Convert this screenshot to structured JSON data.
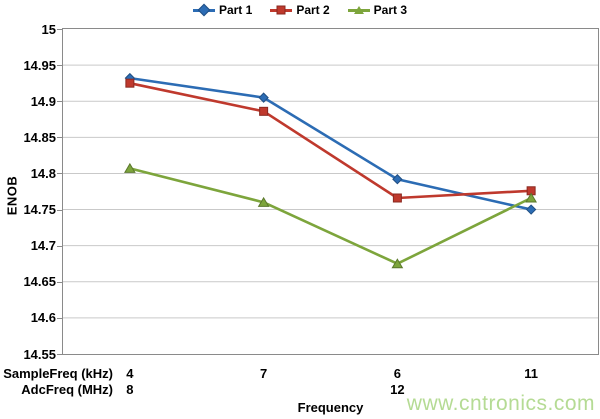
{
  "watermark": {
    "text": "www.cntronics.com",
    "color": "#b5db94"
  },
  "axis_colors": {
    "border": "#8a8a8a",
    "gridline": "#c9c9c9",
    "text": "#000000"
  },
  "chart_data": {
    "type": "line",
    "title": "",
    "ylabel": "ENOB",
    "xlabel": "Frequency",
    "ylim": [
      14.55,
      15
    ],
    "ytick_step": 0.05,
    "yticks": [
      "15",
      "14.95",
      "14.9",
      "14.85",
      "14.8",
      "14.75",
      "14.7",
      "14.65",
      "14.6",
      "14.55"
    ],
    "grid": true,
    "legend_position": "top",
    "categories": [
      "4",
      "7",
      "6",
      "11"
    ],
    "x_axis_rows": [
      {
        "label": "SampleFreq (kHz)",
        "values": [
          "4",
          "7",
          "6",
          "11"
        ]
      },
      {
        "label": "AdcFreq (MHz)",
        "values": [
          "8",
          "",
          "12",
          ""
        ]
      }
    ],
    "series": [
      {
        "name": "Part 1",
        "color": "#2c6cb4",
        "marker": "diamond",
        "values": [
          14.932,
          14.905,
          14.792,
          14.75
        ]
      },
      {
        "name": "Part 2",
        "color": "#bf392d",
        "marker": "square",
        "values": [
          14.925,
          14.886,
          14.766,
          14.776
        ]
      },
      {
        "name": "Part 3",
        "color": "#7da53c",
        "marker": "triangle",
        "values": [
          14.807,
          14.76,
          14.675,
          14.766
        ]
      }
    ]
  }
}
